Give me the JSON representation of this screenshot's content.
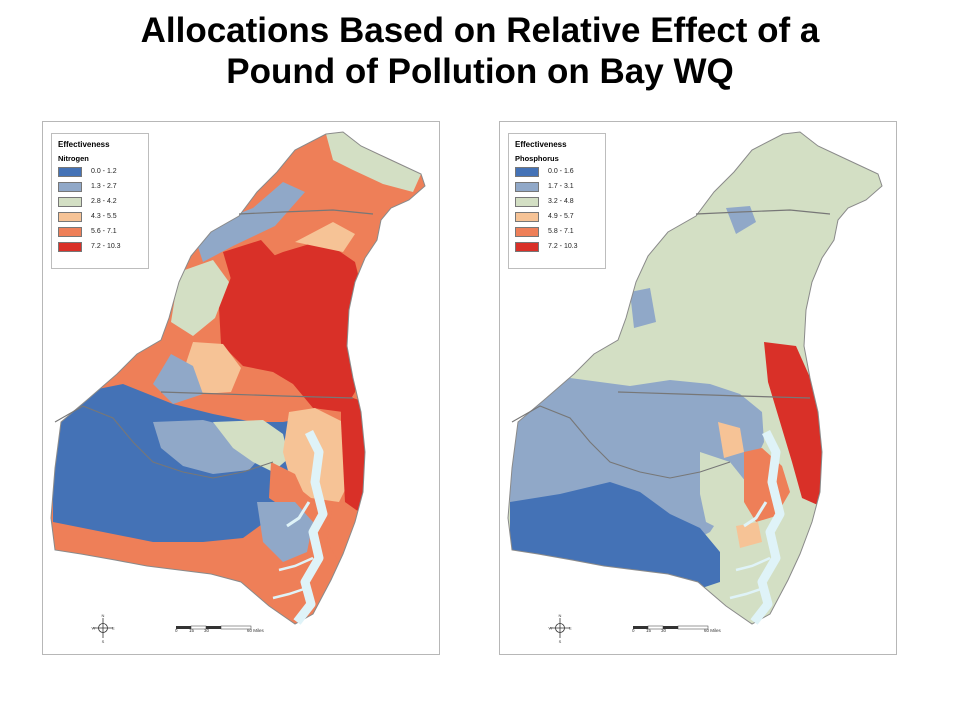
{
  "slide": {
    "title_line1": "Allocations Based on Relative Effect of a",
    "title_line2": "Pound of Pollution on Bay WQ"
  },
  "maps": [
    {
      "legend_title": "Effectiveness",
      "legend_subtitle": "Nitrogen",
      "classes": [
        {
          "label": "0.0 - 1.2",
          "color": "#4472b6"
        },
        {
          "label": "1.3 - 2.7",
          "color": "#90a8c8"
        },
        {
          "label": "2.8 - 4.2",
          "color": "#d3dfc4"
        },
        {
          "label": "4.3 - 5.5",
          "color": "#f6c396"
        },
        {
          "label": "5.6 - 7.1",
          "color": "#ee7f58"
        },
        {
          "label": "7.2 - 10.3",
          "color": "#d93028"
        }
      ],
      "scale_labels": [
        "0",
        "15",
        "30",
        "60 Miles"
      ],
      "compass": {
        "n": "N",
        "s": "S",
        "e": "E",
        "w": "W"
      }
    },
    {
      "legend_title": "Effectiveness",
      "legend_subtitle": "Phosphorus",
      "classes": [
        {
          "label": "0.0 - 1.6",
          "color": "#4472b6"
        },
        {
          "label": "1.7 - 3.1",
          "color": "#90a8c8"
        },
        {
          "label": "3.2 - 4.8",
          "color": "#d3dfc4"
        },
        {
          "label": "4.9 - 5.7",
          "color": "#f6c396"
        },
        {
          "label": "5.8 - 7.1",
          "color": "#ee7f58"
        },
        {
          "label": "7.2 - 10.3",
          "color": "#d93028"
        }
      ],
      "scale_labels": [
        "0",
        "15",
        "30",
        "60 Miles"
      ],
      "compass": {
        "n": "N",
        "s": "S",
        "e": "E",
        "w": "W"
      }
    }
  ],
  "water_color": "#dff3f8"
}
